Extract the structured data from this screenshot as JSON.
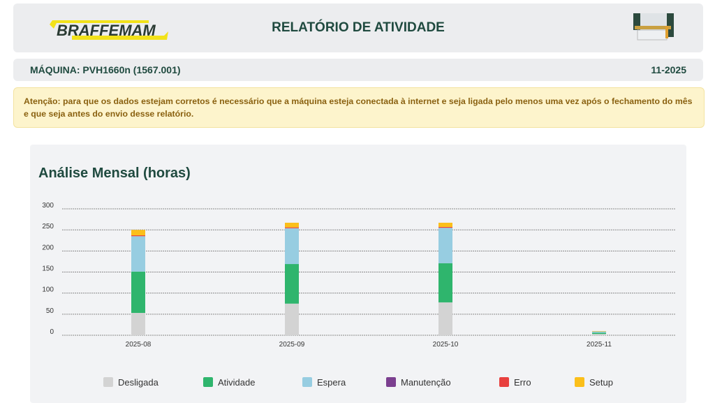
{
  "header": {
    "brand": "BRAFFEMAM",
    "title": "RELATÓRIO DE ATIVIDADE"
  },
  "machine": {
    "label": "MÁQUINA: PVH1660n (1567.001)",
    "period": "11-2025"
  },
  "warning": "Atenção: para que os dados estejam corretos é necessário que a máquina esteja conectada à internet e seja ligada pelo menos uma vez após o fechamento do mês e que seja antes do envio desse relatório.",
  "chart_data": {
    "type": "bar",
    "stacked": true,
    "title": "Análise Mensal (horas)",
    "categories": [
      "2025-08",
      "2025-09",
      "2025-10",
      "2025-11"
    ],
    "ylim": [
      0,
      300
    ],
    "yticks": [
      0,
      50,
      100,
      150,
      200,
      250,
      300
    ],
    "grid": true,
    "legend_position": "bottom",
    "series": [
      {
        "name": "Desligada",
        "color": "#d3d3d3",
        "values": [
          53,
          75,
          78,
          3
        ]
      },
      {
        "name": "Atividade",
        "color": "#2fb56d",
        "values": [
          98,
          94,
          93,
          3
        ]
      },
      {
        "name": "Espera",
        "color": "#97cde1",
        "values": [
          84,
          85,
          84,
          3
        ]
      },
      {
        "name": "Manutenção",
        "color": "#7b3f8f",
        "values": [
          0,
          0,
          0,
          0
        ]
      },
      {
        "name": "Erro",
        "color": "#e8403e",
        "values": [
          2,
          2,
          2,
          0
        ]
      },
      {
        "name": "Setup",
        "color": "#fbbf1a",
        "values": [
          13,
          11,
          10,
          1
        ]
      }
    ]
  }
}
